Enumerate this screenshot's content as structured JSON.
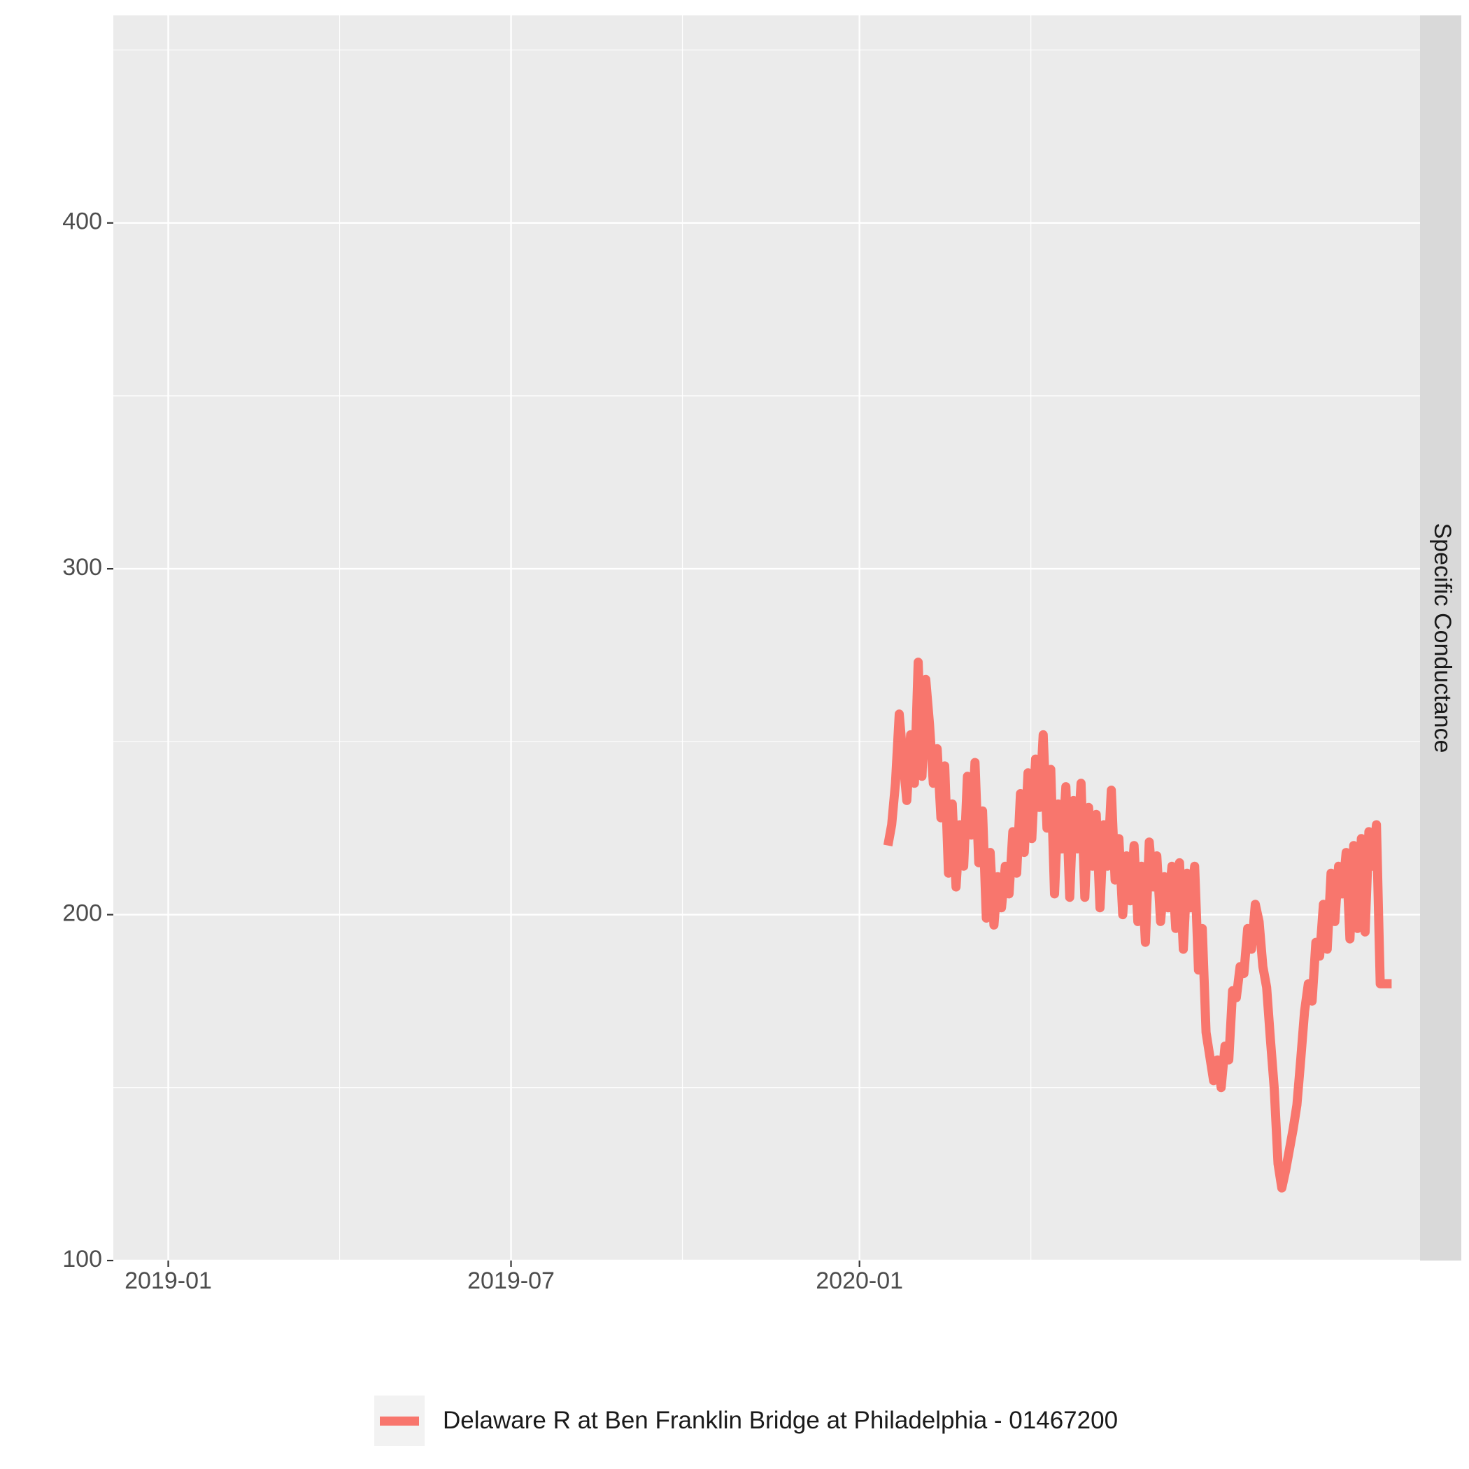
{
  "chart_data": {
    "type": "line",
    "title": "",
    "xlabel": "",
    "ylabel": "",
    "facet_label": "Specific Conductance",
    "x_ticks": [
      "2019-01",
      "2019-07",
      "2020-01"
    ],
    "y_ticks": [
      100,
      200,
      300,
      400
    ],
    "xlim": [
      "2018-12-03",
      "2020-10-23"
    ],
    "ylim": [
      100,
      460
    ],
    "grid": true,
    "legend_position": "bottom",
    "series": [
      {
        "name": "Delaware R at Ben Franklin Bridge at Philadelphia - 01467200",
        "color": "#F8766D",
        "x": [
          "2020-01-16",
          "2020-01-18",
          "2020-01-20",
          "2020-01-22",
          "2020-01-24",
          "2020-01-26",
          "2020-01-28",
          "2020-01-30",
          "2020-02-01",
          "2020-02-03",
          "2020-02-05",
          "2020-02-07",
          "2020-02-09",
          "2020-02-11",
          "2020-02-13",
          "2020-02-15",
          "2020-02-17",
          "2020-02-19",
          "2020-02-21",
          "2020-02-23",
          "2020-02-25",
          "2020-02-27",
          "2020-02-29",
          "2020-03-02",
          "2020-03-04",
          "2020-03-06",
          "2020-03-08",
          "2020-03-10",
          "2020-03-12",
          "2020-03-14",
          "2020-03-16",
          "2020-03-18",
          "2020-03-20",
          "2020-03-22",
          "2020-03-24",
          "2020-03-26",
          "2020-03-28",
          "2020-03-30",
          "2020-04-01",
          "2020-04-03",
          "2020-04-05",
          "2020-04-07",
          "2020-04-09",
          "2020-04-11",
          "2020-04-13",
          "2020-04-15",
          "2020-04-17",
          "2020-04-19",
          "2020-04-21",
          "2020-04-23",
          "2020-04-25",
          "2020-04-27",
          "2020-04-29",
          "2020-05-01",
          "2020-05-03",
          "2020-05-05",
          "2020-05-07",
          "2020-05-09",
          "2020-05-11",
          "2020-05-13",
          "2020-05-15",
          "2020-05-17",
          "2020-05-19",
          "2020-05-21",
          "2020-05-23",
          "2020-05-25",
          "2020-05-27",
          "2020-05-29",
          "2020-05-31",
          "2020-06-02",
          "2020-06-04",
          "2020-06-06",
          "2020-06-08",
          "2020-06-10",
          "2020-06-12",
          "2020-06-14",
          "2020-06-16",
          "2020-06-18",
          "2020-06-20",
          "2020-06-22",
          "2020-06-24",
          "2020-06-26",
          "2020-06-28",
          "2020-06-30",
          "2020-07-02",
          "2020-07-04",
          "2020-07-06",
          "2020-07-08",
          "2020-07-10",
          "2020-07-12",
          "2020-07-14",
          "2020-07-16",
          "2020-07-18",
          "2020-07-20",
          "2020-07-22",
          "2020-07-24",
          "2020-07-26",
          "2020-07-28",
          "2020-07-30",
          "2020-08-01",
          "2020-08-03",
          "2020-08-05",
          "2020-08-07",
          "2020-08-09",
          "2020-08-11",
          "2020-08-13",
          "2020-08-15",
          "2020-08-17",
          "2020-08-19",
          "2020-08-21",
          "2020-08-23",
          "2020-08-25",
          "2020-08-27",
          "2020-08-29",
          "2020-08-31",
          "2020-09-02",
          "2020-09-04",
          "2020-09-06",
          "2020-09-08",
          "2020-09-10",
          "2020-09-12",
          "2020-09-14",
          "2020-09-16",
          "2020-09-18",
          "2020-09-20",
          "2020-09-22",
          "2020-09-24",
          "2020-09-26",
          "2020-09-28",
          "2020-09-30",
          "2020-10-02",
          "2020-10-04",
          "2020-10-06",
          "2020-10-08"
        ],
        "y": [
          220,
          226,
          238,
          258,
          245,
          233,
          252,
          238,
          273,
          240,
          268,
          255,
          238,
          248,
          228,
          243,
          212,
          232,
          208,
          226,
          214,
          240,
          223,
          244,
          215,
          230,
          199,
          218,
          197,
          211,
          202,
          214,
          206,
          224,
          212,
          235,
          218,
          241,
          222,
          245,
          231,
          252,
          225,
          242,
          206,
          232,
          219,
          237,
          205,
          233,
          219,
          238,
          205,
          231,
          214,
          229,
          202,
          226,
          214,
          236,
          210,
          222,
          200,
          217,
          204,
          220,
          198,
          214,
          192,
          221,
          208,
          217,
          198,
          211,
          202,
          214,
          196,
          215,
          190,
          212,
          202,
          214,
          184,
          196,
          166,
          159,
          152,
          158,
          150,
          162,
          158,
          178,
          176,
          185,
          183,
          196,
          190,
          203,
          198,
          185,
          179,
          164,
          150,
          128,
          121,
          126,
          132,
          138,
          145,
          158,
          172,
          180,
          175,
          192,
          188,
          203,
          190,
          212,
          198,
          214,
          206,
          218,
          193,
          220,
          196,
          222,
          195,
          224,
          214,
          226,
          180,
          180,
          180,
          180
        ]
      }
    ]
  }
}
